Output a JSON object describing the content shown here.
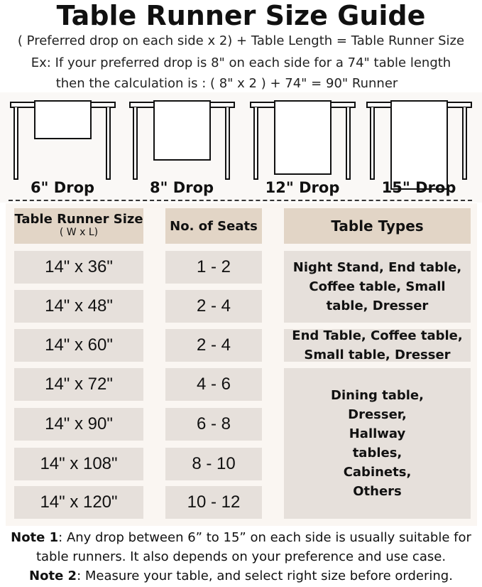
{
  "title": "Table Runner Size Guide",
  "formula": "( Preferred drop on each side x 2) + Table Length = Table Runner Size",
  "example_line1": "Ex: If your preferred drop is 8\" on each side for a 74\" table length",
  "example_line2": "then the calculation is : ( 8\" x 2 ) + 74\" = 90\" Runner",
  "drops": [
    "6\" Drop",
    "8\" Drop",
    "12\" Drop",
    "15\" Drop"
  ],
  "table": {
    "headers": {
      "size": "Table Runner Size",
      "size_sub": "( W x L)",
      "seats": "No. of Seats",
      "types": "Table Types"
    },
    "rows": [
      {
        "size": "14\" x 36\"",
        "seats": "1 - 2"
      },
      {
        "size": "14\" x 48\"",
        "seats": "2 - 4"
      },
      {
        "size": "14\" x 60\"",
        "seats": "2 - 4"
      },
      {
        "size": "14\" x 72\"",
        "seats": "4 - 6"
      },
      {
        "size": "14\" x 90\"",
        "seats": "6 - 8"
      },
      {
        "size": "14\" x 108\"",
        "seats": "8 - 10"
      },
      {
        "size": "14\" x 120\"",
        "seats": "10 - 12"
      }
    ],
    "types": [
      "Night Stand, End table, Coffee table, Small table, Dresser",
      "End Table, Coffee table, Small table, Dresser",
      "Dining table, Dresser, Hallway tables, Cabinets, Others"
    ]
  },
  "notes": {
    "note1_label": "Note 1",
    "note1_text": ": Any drop between 6” to 15” on each side is usually suitable for",
    "note1_text2": "table runners. It also depends on your preference and use case.",
    "note2_label": "Note 2",
    "note2_text": ": Measure your table, and select right size before ordering."
  },
  "colors": {
    "header_cell": "#e2d5c6",
    "body_cell": "#e6e0db",
    "panel": "#faf6f2"
  }
}
